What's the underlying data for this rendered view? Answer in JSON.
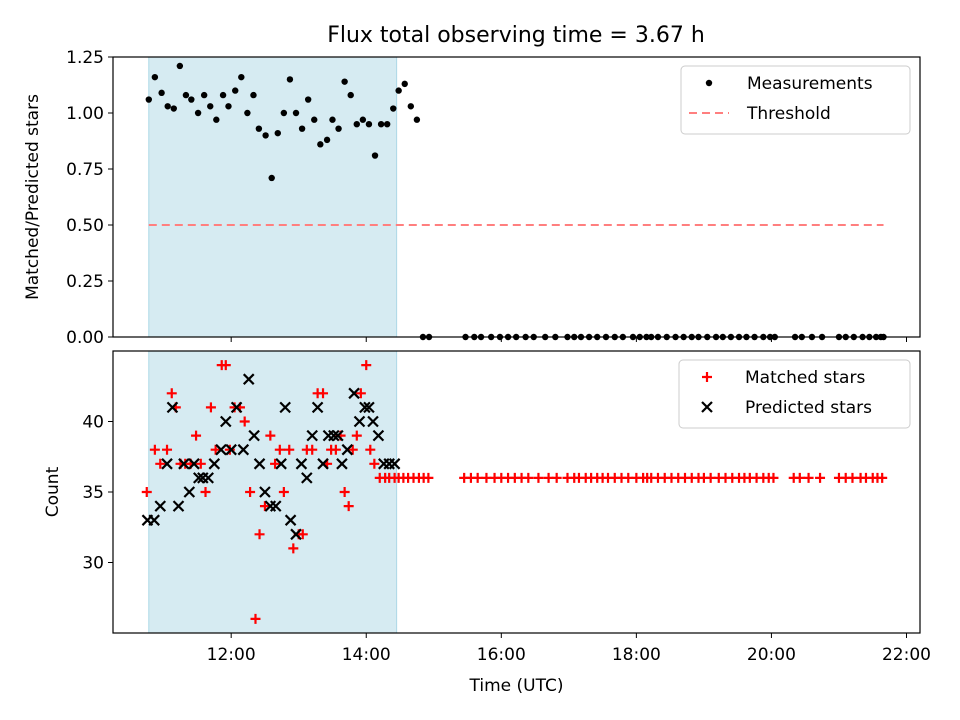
{
  "chart_data": [
    {
      "type": "scatter",
      "title": "Flux total observing time = 3.67 h",
      "ylabel": "Matched/Predicted stars",
      "xlabel": "",
      "xlim": [
        10.25,
        22.2
      ],
      "ylim": [
        0,
        1.25
      ],
      "yticks": [
        0,
        0.25,
        0.5,
        0.75,
        1.0,
        1.25
      ],
      "ytick_labels": [
        "0.00",
        "0.25",
        "0.50",
        "0.75",
        "1.00",
        "1.25"
      ],
      "shaded_span": [
        10.78,
        14.45
      ],
      "legend": [
        "Measurements",
        "Threshold"
      ],
      "series": [
        {
          "name": "Measurements",
          "color": "#000000",
          "x": [
            10.78,
            10.87,
            10.97,
            11.06,
            11.15,
            11.24,
            11.33,
            11.41,
            11.51,
            11.6,
            11.69,
            11.78,
            11.88,
            11.96,
            12.06,
            12.15,
            12.24,
            12.33,
            12.41,
            12.51,
            12.6,
            12.69,
            12.78,
            12.87,
            12.96,
            13.05,
            13.14,
            13.23,
            13.32,
            13.42,
            13.5,
            13.59,
            13.68,
            13.77,
            13.86,
            13.95,
            14.04,
            14.13,
            14.22,
            14.31,
            14.4,
            14.48,
            14.57,
            14.66,
            14.75,
            14.84,
            14.93,
            15.47,
            15.6,
            15.7,
            15.85,
            15.98,
            16.1,
            16.22,
            16.36,
            16.48,
            16.65,
            16.8,
            16.98,
            17.08,
            17.18,
            17.3,
            17.42,
            17.55,
            17.68,
            17.8,
            17.95,
            18.05,
            18.15,
            18.22,
            18.32,
            18.45,
            18.58,
            18.7,
            18.82,
            18.92,
            19.05,
            19.18,
            19.28,
            19.4,
            19.52,
            19.63,
            19.75,
            19.88,
            19.98,
            20.05,
            20.35,
            20.45,
            20.6,
            20.75,
            21.0,
            21.1,
            21.22,
            21.35,
            21.45,
            21.55,
            21.62,
            21.66
          ],
          "y": [
            1.06,
            1.16,
            1.09,
            1.03,
            1.02,
            1.21,
            1.08,
            1.06,
            1.0,
            1.08,
            1.03,
            0.97,
            1.08,
            1.03,
            1.1,
            1.16,
            1.0,
            1.08,
            0.93,
            0.9,
            0.71,
            0.91,
            1.0,
            1.15,
            1.0,
            0.93,
            1.06,
            0.97,
            0.86,
            0.88,
            0.97,
            0.93,
            1.14,
            1.08,
            0.95,
            0.97,
            0.95,
            0.81,
            0.95,
            0.95,
            1.02,
            1.1,
            1.13,
            1.03,
            0.97,
            0,
            0,
            0,
            0,
            0,
            0,
            0,
            0,
            0,
            0,
            0,
            0,
            0,
            0,
            0,
            0,
            0,
            0,
            0,
            0,
            0,
            0,
            0,
            0,
            0,
            0,
            0,
            0,
            0,
            0,
            0,
            0,
            0,
            0,
            0,
            0,
            0,
            0,
            0,
            0,
            0,
            0,
            0,
            0,
            0,
            0,
            0,
            0,
            0,
            0,
            0,
            0,
            0
          ]
        },
        {
          "name": "Threshold",
          "color": "#ff7f7f",
          "x": [
            10.78,
            21.66
          ],
          "y": [
            0.5,
            0.5
          ]
        }
      ]
    },
    {
      "type": "scatter",
      "title": "",
      "xlabel": "Time (UTC)",
      "ylabel": "Count",
      "xlim": [
        10.25,
        22.2
      ],
      "ylim": [
        25,
        45
      ],
      "xticks": [
        12,
        14,
        16,
        18,
        20,
        22
      ],
      "xtick_labels": [
        "12:00",
        "14:00",
        "16:00",
        "18:00",
        "20:00",
        "22:00"
      ],
      "yticks": [
        30,
        35,
        40
      ],
      "ytick_labels": [
        "30",
        "35",
        "40"
      ],
      "shaded_span": [
        10.78,
        14.45
      ],
      "legend": [
        "Matched stars",
        "Predicted stars"
      ],
      "series": [
        {
          "name": "Matched stars",
          "color": "#ff0000",
          "x": [
            10.75,
            10.87,
            10.95,
            11.05,
            11.12,
            11.18,
            11.25,
            11.32,
            11.4,
            11.48,
            11.55,
            11.62,
            11.7,
            11.77,
            11.86,
            11.92,
            11.98,
            12.05,
            12.13,
            12.2,
            12.28,
            12.36,
            12.42,
            12.5,
            12.58,
            12.65,
            12.72,
            12.78,
            12.86,
            12.92,
            13.0,
            13.06,
            13.12,
            13.2,
            13.28,
            13.36,
            13.42,
            13.48,
            13.55,
            13.62,
            13.68,
            13.74,
            13.8,
            13.86,
            13.92,
            14.0,
            14.06,
            14.12,
            14.2,
            14.28,
            14.34,
            14.42,
            14.48,
            14.55,
            14.62,
            14.7,
            14.78,
            14.85,
            14.92,
            15.45,
            15.55,
            15.65,
            15.78,
            15.9,
            16.0,
            16.1,
            16.2,
            16.3,
            16.4,
            16.55,
            16.7,
            16.82,
            16.98,
            17.08,
            17.15,
            17.25,
            17.33,
            17.42,
            17.5,
            17.58,
            17.68,
            17.78,
            17.88,
            18.0,
            18.1,
            18.16,
            18.22,
            18.32,
            18.42,
            18.52,
            18.62,
            18.72,
            18.82,
            18.92,
            19.0,
            19.1,
            19.22,
            19.32,
            19.42,
            19.52,
            19.6,
            19.68,
            19.78,
            19.88,
            19.96,
            20.03,
            20.33,
            20.42,
            20.55,
            20.72,
            21.0,
            21.1,
            21.2,
            21.32,
            21.4,
            21.5,
            21.57,
            21.64
          ],
          "y": [
            35,
            38,
            37,
            38,
            42,
            41,
            37,
            37,
            37,
            39,
            37,
            35,
            41,
            38,
            44,
            44,
            38,
            41,
            41,
            40,
            35,
            26,
            32,
            34,
            39,
            37,
            38,
            35,
            38,
            31,
            32,
            32,
            38,
            38,
            42,
            42,
            37,
            38,
            38,
            39,
            35,
            34,
            38,
            39,
            42,
            44,
            38,
            37,
            36,
            36,
            36,
            36,
            36,
            36,
            36,
            36,
            36,
            36,
            36,
            36,
            36,
            36,
            36,
            36,
            36,
            36,
            36,
            36,
            36,
            36,
            36,
            36,
            36,
            36,
            36,
            36,
            36,
            36,
            36,
            36,
            36,
            36,
            36,
            36,
            36,
            36,
            36,
            36,
            36,
            36,
            36,
            36,
            36,
            36,
            36,
            36,
            36,
            36,
            36,
            36,
            36,
            36,
            36,
            36,
            36,
            36,
            36,
            36,
            36,
            36,
            36,
            36,
            36,
            36,
            36,
            36,
            36,
            36
          ]
        },
        {
          "name": "Predicted stars",
          "color": "#000000",
          "x": [
            10.76,
            10.86,
            10.95,
            11.05,
            11.13,
            11.22,
            11.3,
            11.38,
            11.45,
            11.52,
            11.58,
            11.66,
            11.75,
            11.85,
            11.92,
            12.0,
            12.08,
            12.18,
            12.26,
            12.34,
            12.42,
            12.5,
            12.58,
            12.66,
            12.74,
            12.8,
            12.88,
            12.96,
            13.04,
            13.12,
            13.2,
            13.28,
            13.36,
            13.44,
            13.52,
            13.58,
            13.64,
            13.72,
            13.82,
            13.9,
            13.98,
            14.04,
            14.1,
            14.18,
            14.26,
            14.34,
            14.42
          ],
          "y": [
            33,
            33,
            34,
            37,
            41,
            34,
            37,
            35,
            37,
            36,
            36,
            36,
            37,
            38,
            40,
            38,
            41,
            38,
            43,
            39,
            37,
            35,
            34,
            34,
            37,
            41,
            33,
            32,
            37,
            36,
            39,
            41,
            37,
            39,
            39,
            39,
            37,
            38,
            42,
            40,
            41,
            41,
            40,
            39,
            37,
            37,
            37
          ]
        }
      ]
    }
  ]
}
